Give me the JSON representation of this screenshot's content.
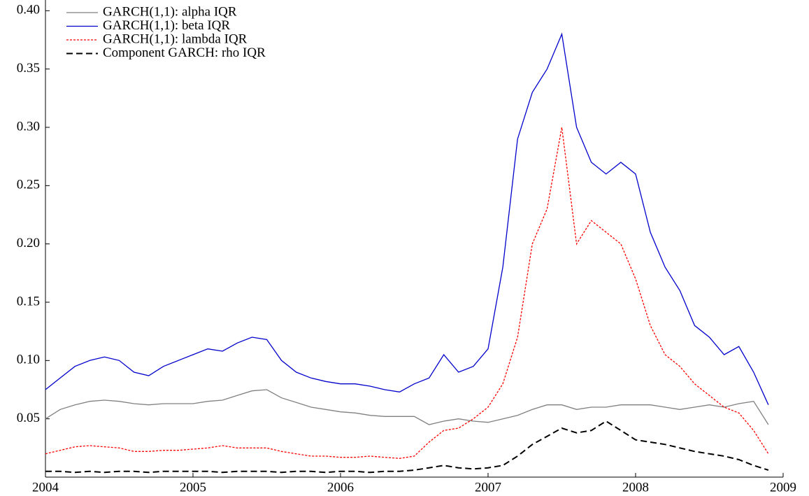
{
  "chart_data": {
    "type": "line",
    "x": [
      2004.0,
      2004.1,
      2004.2,
      2004.3,
      2004.4,
      2004.5,
      2004.6,
      2004.7,
      2004.8,
      2004.9,
      2005.0,
      2005.1,
      2005.2,
      2005.3,
      2005.4,
      2005.5,
      2005.6,
      2005.7,
      2005.8,
      2005.9,
      2006.0,
      2006.1,
      2006.2,
      2006.3,
      2006.4,
      2006.5,
      2006.6,
      2006.7,
      2006.8,
      2006.9,
      2007.0,
      2007.1,
      2007.2,
      2007.3,
      2007.4,
      2007.5,
      2007.6,
      2007.7,
      2007.8,
      2007.9,
      2008.0,
      2008.1,
      2008.2,
      2008.3,
      2008.4,
      2008.5,
      2008.6,
      2008.7,
      2008.8,
      2008.9
    ],
    "series": [
      {
        "name": "GARCH(1,1): alpha IQR",
        "color": "#808080",
        "style": "solid",
        "values": [
          0.05,
          0.058,
          0.062,
          0.065,
          0.066,
          0.065,
          0.063,
          0.062,
          0.063,
          0.063,
          0.063,
          0.065,
          0.066,
          0.07,
          0.074,
          0.075,
          0.068,
          0.064,
          0.06,
          0.058,
          0.056,
          0.055,
          0.053,
          0.052,
          0.052,
          0.052,
          0.045,
          0.048,
          0.05,
          0.048,
          0.047,
          0.05,
          0.053,
          0.058,
          0.062,
          0.062,
          0.058,
          0.06,
          0.06,
          0.062,
          0.062,
          0.062,
          0.06,
          0.058,
          0.06,
          0.062,
          0.06,
          0.063,
          0.065,
          0.045
        ]
      },
      {
        "name": "GARCH(1,1): beta IQR",
        "color": "#0000cc",
        "style": "solid",
        "values": [
          0.075,
          0.085,
          0.095,
          0.1,
          0.103,
          0.1,
          0.09,
          0.087,
          0.095,
          0.1,
          0.105,
          0.11,
          0.108,
          0.115,
          0.12,
          0.118,
          0.1,
          0.09,
          0.085,
          0.082,
          0.08,
          0.08,
          0.078,
          0.075,
          0.073,
          0.08,
          0.085,
          0.105,
          0.09,
          0.095,
          0.11,
          0.18,
          0.29,
          0.33,
          0.35,
          0.38,
          0.3,
          0.27,
          0.26,
          0.27,
          0.26,
          0.21,
          0.18,
          0.16,
          0.13,
          0.12,
          0.105,
          0.112,
          0.09,
          0.062
        ]
      },
      {
        "name": "GARCH(1,1): lambda IQR",
        "color": "#ff0000",
        "style": "dotted",
        "values": [
          0.02,
          0.023,
          0.026,
          0.027,
          0.026,
          0.025,
          0.022,
          0.022,
          0.023,
          0.023,
          0.024,
          0.025,
          0.027,
          0.025,
          0.025,
          0.025,
          0.022,
          0.02,
          0.018,
          0.018,
          0.017,
          0.017,
          0.018,
          0.017,
          0.016,
          0.018,
          0.03,
          0.04,
          0.042,
          0.05,
          0.06,
          0.08,
          0.12,
          0.2,
          0.23,
          0.3,
          0.2,
          0.22,
          0.21,
          0.2,
          0.17,
          0.13,
          0.105,
          0.095,
          0.08,
          0.07,
          0.06,
          0.055,
          0.04,
          0.02
        ]
      },
      {
        "name": "Component GARCH: rho IQR",
        "color": "#000000",
        "style": "dashed",
        "values": [
          0.005,
          0.005,
          0.004,
          0.005,
          0.004,
          0.005,
          0.005,
          0.004,
          0.005,
          0.005,
          0.005,
          0.005,
          0.004,
          0.005,
          0.005,
          0.005,
          0.004,
          0.005,
          0.005,
          0.004,
          0.005,
          0.005,
          0.004,
          0.005,
          0.005,
          0.006,
          0.008,
          0.01,
          0.008,
          0.007,
          0.008,
          0.01,
          0.018,
          0.028,
          0.035,
          0.042,
          0.038,
          0.04,
          0.048,
          0.04,
          0.032,
          0.03,
          0.028,
          0.025,
          0.022,
          0.02,
          0.018,
          0.015,
          0.01,
          0.006
        ]
      }
    ],
    "xlim": [
      2004,
      2009
    ],
    "xticks": [
      2004,
      2005,
      2006,
      2007,
      2008,
      2009
    ],
    "ylim": [
      0,
      0.405
    ],
    "yticks": [
      0.05,
      {
        "value": 0.1,
        "label": "0.10"
      },
      0.15,
      {
        "value": 0.2,
        "label": "0.20"
      },
      0.25,
      {
        "value": 0.3,
        "label": "0.30"
      },
      0.35,
      {
        "value": 0.4,
        "label": "0.40"
      }
    ],
    "legend": "upper-left"
  }
}
